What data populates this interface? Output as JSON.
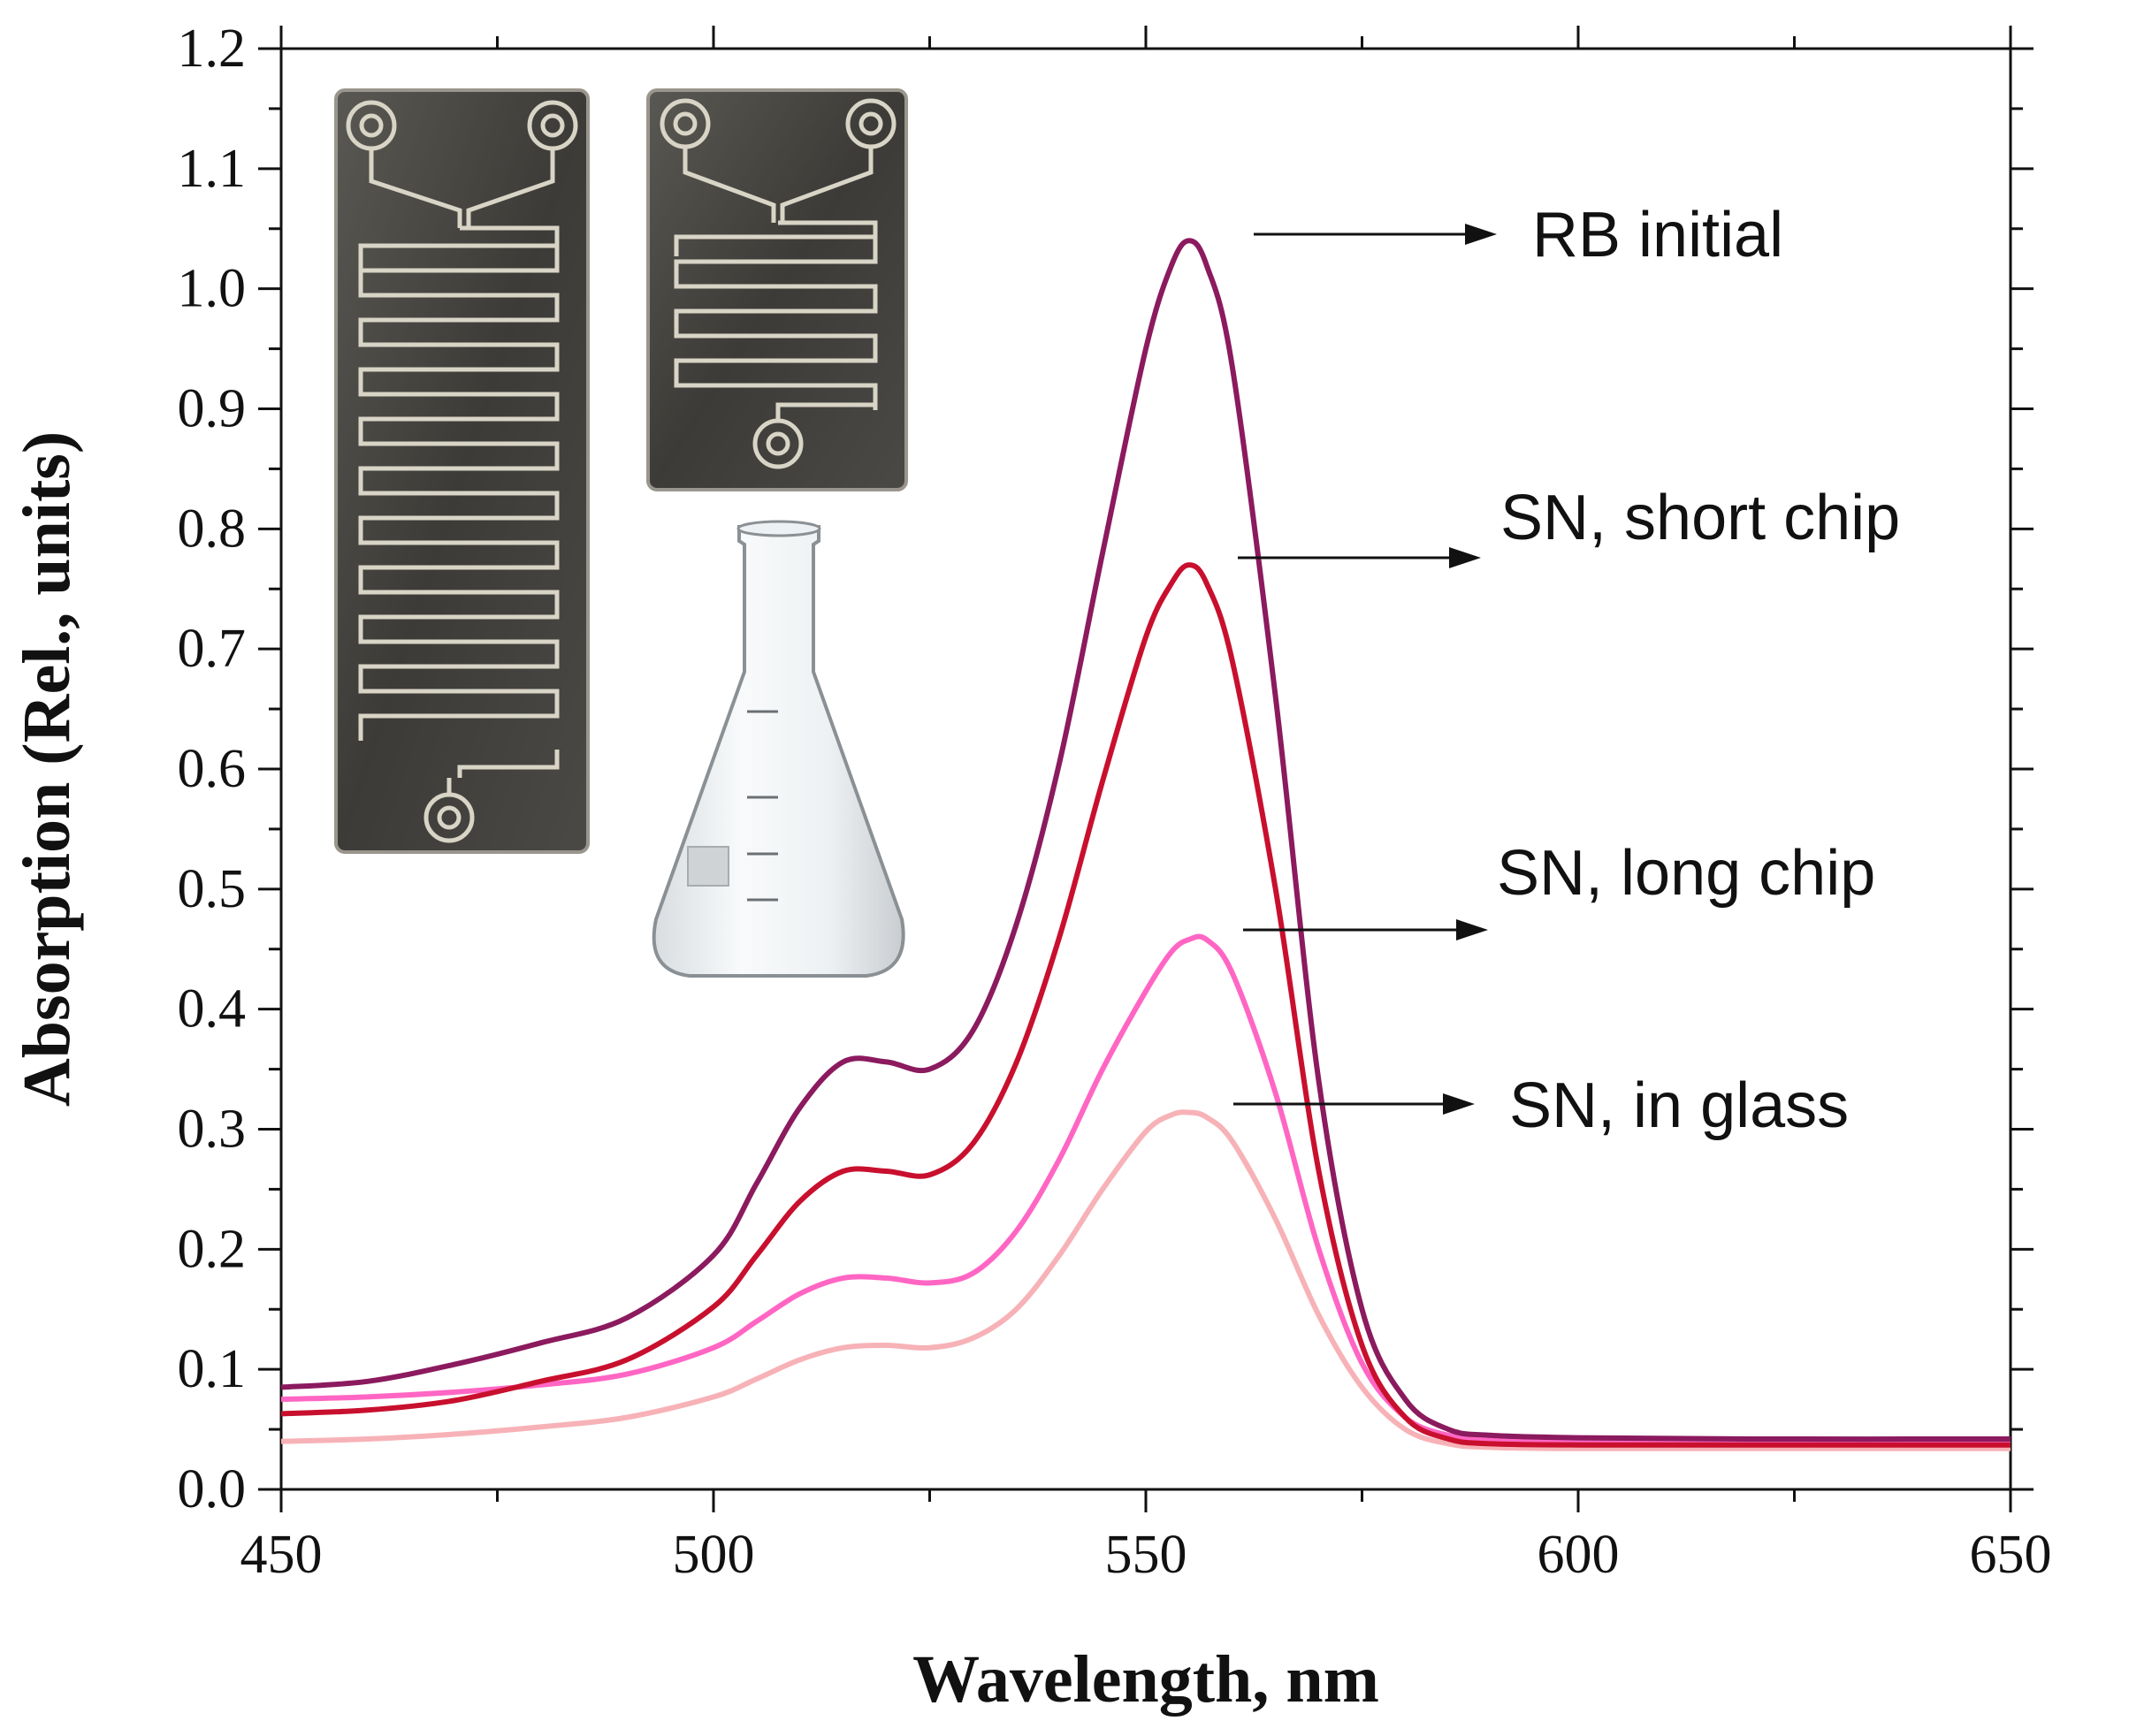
{
  "chart_data": {
    "type": "line",
    "title": "",
    "xlabel": "Wavelength, nm",
    "ylabel": "Absorption (Rel., units)",
    "xlim": [
      450,
      650
    ],
    "ylim": [
      0.0,
      1.2
    ],
    "xticks": [
      "450",
      "500",
      "550",
      "600",
      "650"
    ],
    "yticks": [
      "0.0",
      "0.1",
      "0.2",
      "0.3",
      "0.4",
      "0.5",
      "0.6",
      "0.7",
      "0.8",
      "0.9",
      "1.0",
      "1.1",
      "1.2"
    ],
    "grid": false,
    "legend": "none",
    "series": [
      {
        "name": "RB initial",
        "color": "#8b1a5e",
        "x": [
          450,
          460,
          470,
          480,
          490,
          500,
          505,
          510,
          515,
          520,
          525,
          530,
          535,
          540,
          545,
          550,
          553,
          555,
          557,
          560,
          565,
          570,
          575,
          580,
          585,
          590,
          600,
          620,
          650
        ],
        "y": [
          0.085,
          0.09,
          0.104,
          0.122,
          0.143,
          0.195,
          0.255,
          0.318,
          0.356,
          0.356,
          0.35,
          0.382,
          0.47,
          0.605,
          0.78,
          0.95,
          1.02,
          1.04,
          1.02,
          0.935,
          0.66,
          0.34,
          0.15,
          0.075,
          0.05,
          0.045,
          0.043,
          0.042,
          0.042
        ]
      },
      {
        "name": "SN, short chip",
        "color": "#c8102e",
        "x": [
          450,
          460,
          470,
          480,
          490,
          500,
          505,
          510,
          515,
          520,
          525,
          530,
          535,
          540,
          545,
          550,
          553,
          555,
          557,
          560,
          565,
          570,
          575,
          580,
          585,
          590,
          600,
          620,
          650
        ],
        "y": [
          0.063,
          0.066,
          0.074,
          0.09,
          0.108,
          0.152,
          0.195,
          0.24,
          0.265,
          0.265,
          0.262,
          0.288,
          0.355,
          0.46,
          0.59,
          0.71,
          0.755,
          0.77,
          0.755,
          0.69,
          0.5,
          0.265,
          0.12,
          0.06,
          0.042,
          0.038,
          0.037,
          0.037,
          0.037
        ]
      },
      {
        "name": "SN, long chip",
        "color": "#ff66c4",
        "x": [
          450,
          460,
          470,
          480,
          490,
          500,
          505,
          510,
          515,
          520,
          525,
          530,
          535,
          540,
          545,
          550,
          553,
          555,
          557,
          560,
          565,
          570,
          575,
          580,
          585,
          590,
          600,
          620,
          650
        ],
        "y": [
          0.075,
          0.077,
          0.081,
          0.087,
          0.096,
          0.118,
          0.14,
          0.163,
          0.176,
          0.176,
          0.172,
          0.18,
          0.215,
          0.275,
          0.35,
          0.415,
          0.448,
          0.458,
          0.458,
          0.43,
          0.33,
          0.2,
          0.105,
          0.06,
          0.045,
          0.042,
          0.041,
          0.04,
          0.04
        ]
      },
      {
        "name": "SN, in glass",
        "color": "#f7b2b7",
        "x": [
          450,
          460,
          470,
          480,
          490,
          500,
          505,
          510,
          515,
          520,
          525,
          530,
          535,
          540,
          545,
          550,
          553,
          555,
          557,
          560,
          565,
          570,
          575,
          580,
          585,
          590,
          600,
          620,
          650
        ],
        "y": [
          0.04,
          0.042,
          0.046,
          0.052,
          0.06,
          0.077,
          0.092,
          0.108,
          0.118,
          0.12,
          0.118,
          0.126,
          0.15,
          0.195,
          0.25,
          0.298,
          0.312,
          0.314,
          0.31,
          0.29,
          0.225,
          0.145,
          0.085,
          0.05,
          0.038,
          0.035,
          0.034,
          0.034,
          0.034
        ]
      }
    ],
    "annotations": [
      {
        "text": "RB initial",
        "series": 0
      },
      {
        "text": "SN, short chip",
        "series": 1
      },
      {
        "text": "SN, long chip",
        "series": 2
      },
      {
        "text": "SN, in glass",
        "series": 3
      }
    ]
  }
}
